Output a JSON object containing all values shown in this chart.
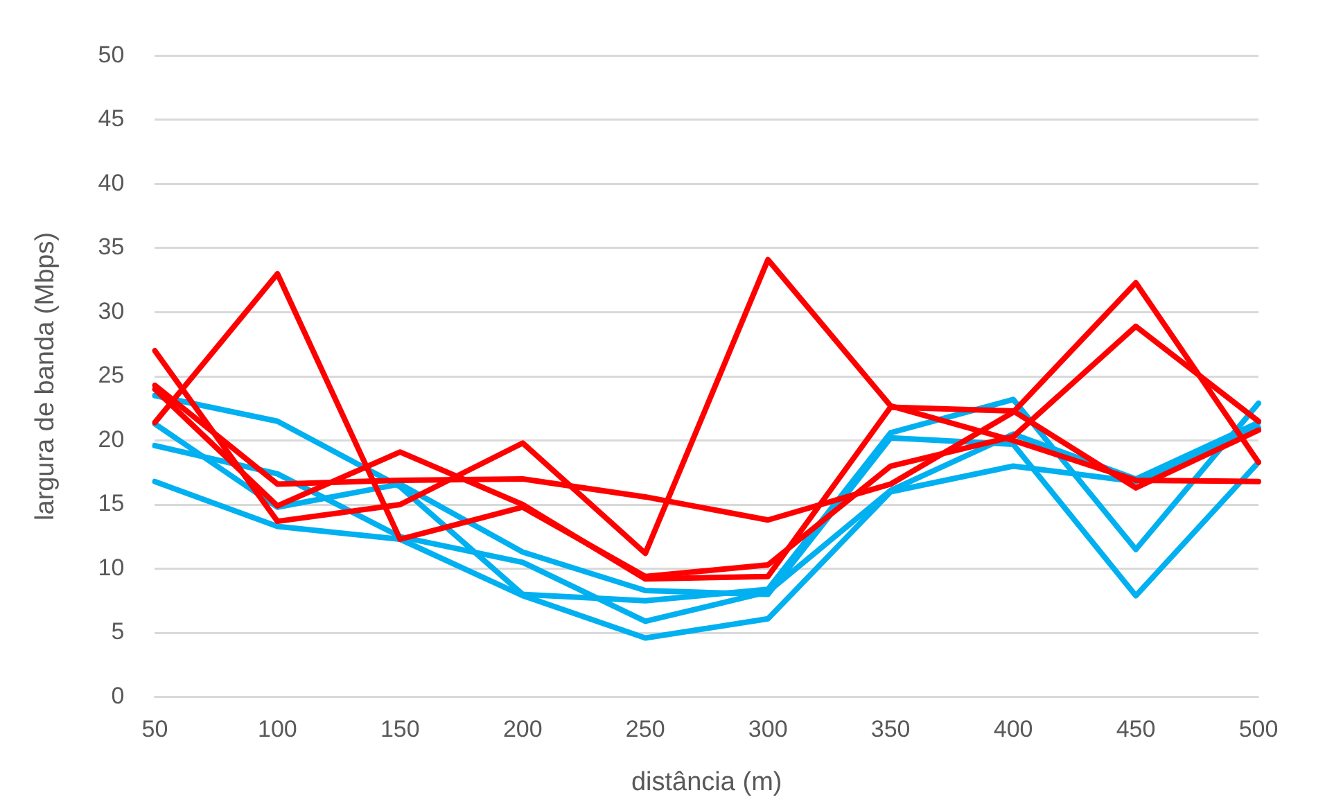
{
  "chart_data": {
    "type": "line",
    "xlabel": "distância (m)",
    "ylabel": "largura de banda (Mbps)",
    "categories": [
      "50",
      "100",
      "150",
      "200",
      "250",
      "300",
      "350",
      "400",
      "450",
      "500"
    ],
    "series": [
      {
        "color": "#ff0000",
        "values": [
          24.0,
          14.9,
          19.1,
          15.0,
          9.2,
          9.4,
          22.6,
          22.3,
          16.3,
          20.8
        ]
      },
      {
        "color": "#ff0000",
        "values": [
          27,
          13.7,
          15.0,
          19.8,
          11.2,
          34.1,
          22.7,
          20.0,
          16.9,
          16.8
        ]
      },
      {
        "color": "#ff0000",
        "values": [
          24.3,
          16.6,
          16.9,
          17.0,
          15.6,
          13.8,
          16.6,
          22.2,
          32.3,
          18.3
        ]
      },
      {
        "color": "#ff0000",
        "values": [
          21.4,
          33,
          12.3,
          14.8,
          9.4,
          10.3,
          18,
          20.3,
          28.9,
          21.5
        ]
      },
      {
        "color": "#00b0f0",
        "values": [
          23.5,
          21.5,
          16.4,
          8.0,
          7.5,
          8.4,
          20.6,
          23.2,
          11.5,
          22.9
        ]
      },
      {
        "color": "#00b0f0",
        "values": [
          21.3,
          14.8,
          16.6,
          11.3,
          8.3,
          8.0,
          20.2,
          19.7,
          7.9,
          18.3
        ]
      },
      {
        "color": "#00b0f0",
        "values": [
          19.6,
          17.4,
          12.5,
          10.5,
          5.9,
          8.2,
          16.1,
          20.5,
          17,
          21.4
        ]
      },
      {
        "color": "#00b0f0",
        "values": [
          16.8,
          13.3,
          12.3,
          7.9,
          4.6,
          6.1,
          16.0,
          18.0,
          16.8,
          21
        ]
      }
    ],
    "ylim": [
      0,
      50
    ],
    "yticks": [
      0,
      5,
      10,
      15,
      20,
      25,
      30,
      35,
      40,
      45,
      50
    ],
    "grid": "y",
    "legend": false,
    "marker": "none",
    "line_style": "solid"
  }
}
